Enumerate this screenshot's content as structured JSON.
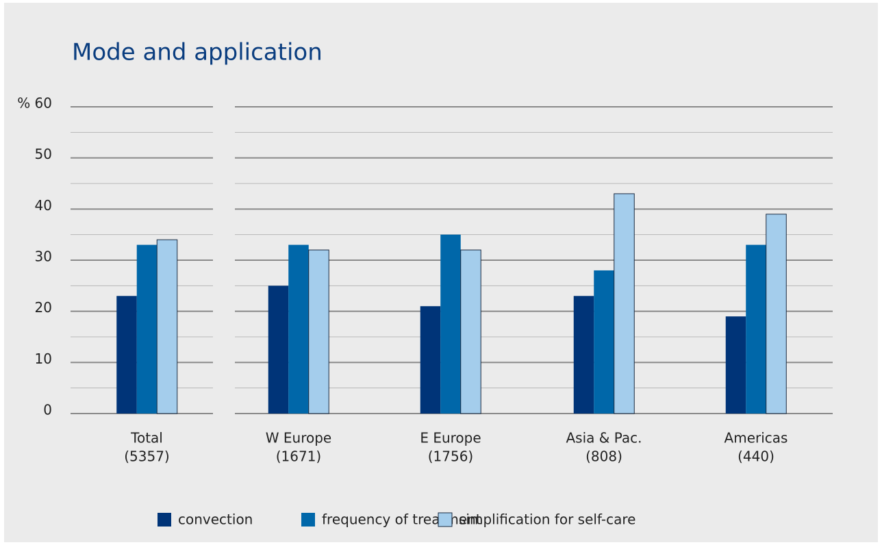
{
  "chart_data": {
    "type": "bar",
    "title": "Mode and application",
    "categories": [
      "Total",
      "W Europe",
      "E Europe",
      "Asia & Pac.",
      "Americas"
    ],
    "category_counts": [
      "(5357)",
      "(1671)",
      "(1756)",
      "(808)",
      "(440)"
    ],
    "series": [
      {
        "name": "convection",
        "color": "#003478",
        "values": [
          23,
          25,
          21,
          23,
          19
        ]
      },
      {
        "name": "frequency of treatment",
        "color": "#0067a9",
        "values": [
          33,
          33,
          35,
          28,
          33
        ]
      },
      {
        "name": "simplification for self-care",
        "color": "#a4cdec",
        "values": [
          34,
          32,
          32,
          43,
          39
        ]
      }
    ],
    "ylim": [
      0,
      60
    ],
    "yticks": [
      0,
      10,
      20,
      30,
      40,
      50,
      {
        "value": 60,
        "label": "% 60"
      }
    ],
    "minor_yticks": [
      5,
      15,
      25,
      35,
      45,
      55
    ],
    "grid": true,
    "legend": "bottom"
  }
}
